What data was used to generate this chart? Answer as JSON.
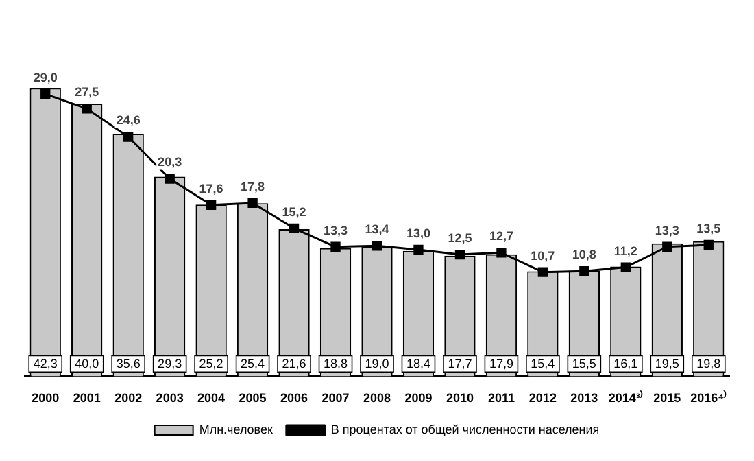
{
  "chart_data": {
    "type": "bar",
    "categories": [
      "2000",
      "2001",
      "2002",
      "2003",
      "2004",
      "2005",
      "2006",
      "2007",
      "2008",
      "2009",
      "2010",
      "2011",
      "2012",
      "2013",
      "2014³⁾",
      "2015",
      "2016⁴⁾"
    ],
    "series": [
      {
        "name": "Млн.человек",
        "type": "bar",
        "color": "#c8c8c8",
        "values": [
          42.3,
          40.0,
          35.6,
          29.3,
          25.2,
          25.4,
          21.6,
          18.8,
          19.0,
          18.4,
          17.7,
          17.9,
          15.4,
          15.5,
          16.1,
          19.5,
          19.8
        ],
        "value_labels": [
          "42,3",
          "40,0",
          "35,6",
          "29,3",
          "25,2",
          "25,4",
          "21,6",
          "18,8",
          "19,0",
          "18,4",
          "17,7",
          "17,9",
          "15,4",
          "15,5",
          "16,1",
          "19,5",
          "19,8"
        ]
      },
      {
        "name": "В процентах от общей численности населения",
        "type": "line",
        "axis": "y2",
        "color": "#000000",
        "values": [
          29.0,
          27.5,
          24.6,
          20.3,
          17.6,
          17.8,
          15.2,
          13.3,
          13.4,
          13.0,
          12.5,
          12.7,
          10.7,
          10.8,
          11.2,
          13.3,
          13.5
        ],
        "value_labels": [
          "29,0",
          "27,5",
          "24,6",
          "20,3",
          "17,6",
          "17,8",
          "15,2",
          "13,3",
          "13,4",
          "13,0",
          "12,5",
          "12,7",
          "10,7",
          "10,8",
          "11,2",
          "13,3",
          "13,5"
        ]
      }
    ],
    "tick_labels": "x",
    "grid": false,
    "legend": "bottom",
    "marker": "square",
    "line_style": "solid"
  }
}
